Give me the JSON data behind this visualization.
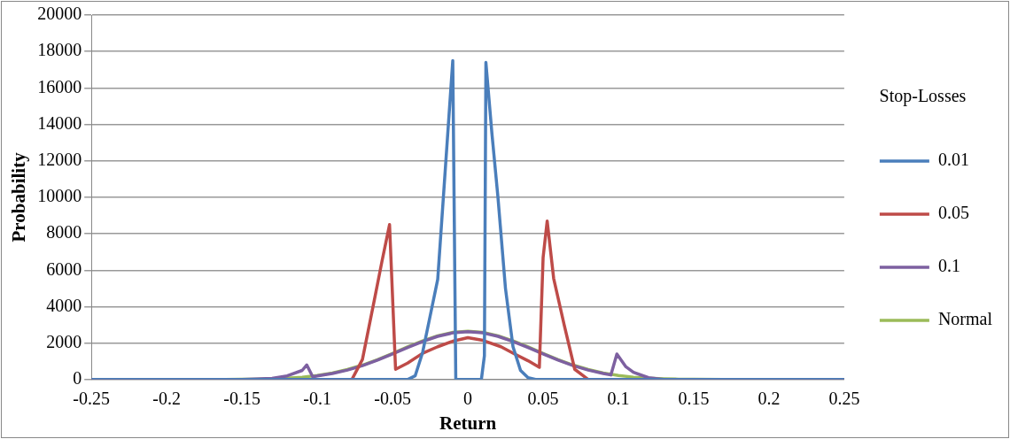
{
  "chart_data": {
    "type": "line",
    "xlabel": "Return",
    "ylabel": "Probability",
    "legend_title": "Stop-Losses",
    "legend": "right",
    "grid": "y",
    "marker": "none",
    "xlim": [
      -0.25,
      0.25
    ],
    "xticks": [
      -0.25,
      -0.2,
      -0.15,
      -0.1,
      -0.05,
      0,
      0.05,
      0.1,
      0.15,
      0.2,
      0.25
    ],
    "ylim": [
      0,
      20000
    ],
    "yticks": [
      0,
      2000,
      4000,
      6000,
      8000,
      10000,
      12000,
      14000,
      16000,
      18000,
      20000
    ],
    "series": [
      {
        "name": "0.01",
        "color": "#4a7ebb",
        "x": [
          -0.25,
          -0.04,
          -0.035,
          -0.03,
          -0.025,
          -0.02,
          -0.015,
          -0.01,
          -0.008,
          0.009,
          0.011,
          0.012,
          0.016,
          0.02,
          0.025,
          0.03,
          0.035,
          0.04,
          0.045,
          0.25
        ],
        "values": [
          0,
          0,
          200,
          1500,
          3500,
          5500,
          11500,
          17500,
          0,
          0,
          1300,
          17400,
          13500,
          10000,
          5000,
          1800,
          500,
          100,
          0,
          0
        ]
      },
      {
        "name": "0.05",
        "color": "#be4b48",
        "x": [
          -0.25,
          -0.077,
          -0.07,
          -0.062,
          -0.057,
          -0.052,
          -0.048,
          -0.04,
          -0.03,
          -0.02,
          -0.01,
          0,
          0.01,
          0.022,
          0.03,
          0.04,
          0.0475,
          0.05,
          0.0527,
          0.057,
          0.064,
          0.071,
          0.08,
          0.25
        ],
        "values": [
          0,
          0,
          1100,
          4400,
          6500,
          8500,
          560,
          900,
          1440,
          1800,
          2100,
          2300,
          2150,
          1800,
          1450,
          1030,
          670,
          6700,
          8700,
          5550,
          3000,
          560,
          0,
          0
        ]
      },
      {
        "name": "0.1",
        "color": "#7d60a0",
        "x": [
          -0.25,
          -0.15,
          -0.13,
          -0.12,
          -0.11,
          -0.107,
          -0.103,
          -0.1,
          -0.09,
          -0.08,
          -0.07,
          -0.06,
          -0.05,
          -0.04,
          -0.03,
          -0.02,
          -0.01,
          0,
          0.01,
          0.02,
          0.03,
          0.04,
          0.05,
          0.06,
          0.07,
          0.08,
          0.09,
          0.095,
          0.099,
          0.105,
          0.11,
          0.12,
          0.13,
          0.25
        ],
        "values": [
          0,
          0,
          60,
          200,
          500,
          800,
          150,
          200,
          330,
          520,
          760,
          1060,
          1400,
          1760,
          2080,
          2370,
          2560,
          2620,
          2560,
          2370,
          2080,
          1760,
          1400,
          1060,
          760,
          520,
          330,
          250,
          1400,
          700,
          400,
          100,
          0,
          0
        ]
      },
      {
        "name": "Normal",
        "color": "#9bbb59",
        "x": [
          -0.25,
          -0.17,
          -0.15,
          -0.14,
          -0.13,
          -0.12,
          -0.11,
          -0.1,
          -0.09,
          -0.08,
          -0.07,
          -0.06,
          -0.05,
          -0.04,
          -0.03,
          -0.02,
          -0.01,
          0,
          0.01,
          0.02,
          0.03,
          0.04,
          0.05,
          0.06,
          0.07,
          0.08,
          0.09,
          0.1,
          0.11,
          0.12,
          0.13,
          0.14,
          0.15,
          0.17,
          0.25
        ],
        "values": [
          0,
          0,
          10,
          20,
          40,
          75,
          130,
          225,
          360,
          550,
          790,
          1090,
          1430,
          1790,
          2120,
          2400,
          2590,
          2650,
          2590,
          2400,
          2120,
          1790,
          1430,
          1090,
          790,
          550,
          360,
          225,
          130,
          75,
          40,
          20,
          10,
          0,
          0
        ]
      }
    ]
  }
}
